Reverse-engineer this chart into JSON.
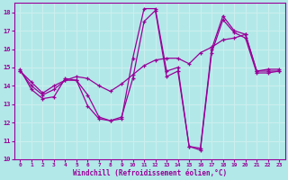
{
  "xlabel": "Windchill (Refroidissement éolien,°C)",
  "xlim": [
    -0.5,
    23.5
  ],
  "ylim": [
    10,
    18.5
  ],
  "xticks": [
    0,
    1,
    2,
    3,
    4,
    5,
    6,
    7,
    8,
    9,
    10,
    11,
    12,
    13,
    14,
    15,
    16,
    17,
    18,
    19,
    20,
    21,
    22,
    23
  ],
  "yticks": [
    10,
    11,
    12,
    13,
    14,
    15,
    16,
    17,
    18
  ],
  "bg_color": "#b2e8e8",
  "line_color": "#990099",
  "grid_color": "#cceeee",
  "line1_x": [
    0,
    1,
    2,
    3,
    4,
    5,
    6,
    7,
    8,
    9,
    10,
    11,
    12,
    13,
    14,
    15,
    16,
    17,
    18,
    19,
    20,
    21,
    22,
    23
  ],
  "line1_y": [
    14.9,
    13.8,
    13.3,
    13.4,
    14.4,
    14.3,
    12.9,
    12.2,
    12.1,
    12.2,
    15.5,
    18.2,
    18.2,
    14.8,
    15.0,
    10.7,
    10.6,
    16.0,
    17.8,
    17.0,
    16.8,
    14.8,
    14.8,
    14.8
  ],
  "line2_x": [
    0,
    1,
    2,
    3,
    4,
    5,
    6,
    7,
    8,
    9,
    10,
    11,
    12,
    13,
    14,
    15,
    16,
    17,
    18,
    19,
    20,
    21,
    22,
    23
  ],
  "line2_y": [
    14.8,
    14.0,
    13.5,
    13.8,
    14.3,
    14.3,
    13.5,
    12.3,
    12.1,
    12.3,
    14.4,
    17.5,
    18.1,
    14.5,
    14.8,
    10.7,
    10.5,
    15.8,
    17.6,
    16.9,
    16.6,
    14.7,
    14.7,
    14.8
  ],
  "line3_x": [
    0,
    1,
    2,
    3,
    4,
    5,
    6,
    7,
    8,
    9,
    10,
    11,
    12,
    13,
    14,
    15,
    16,
    17,
    18,
    19,
    20,
    21,
    22,
    23
  ],
  "line3_y": [
    14.8,
    14.2,
    13.6,
    14.0,
    14.3,
    14.5,
    14.4,
    14.0,
    13.7,
    14.1,
    14.6,
    15.1,
    15.4,
    15.5,
    15.5,
    15.2,
    15.8,
    16.1,
    16.5,
    16.6,
    16.8,
    14.8,
    14.9,
    14.9
  ]
}
